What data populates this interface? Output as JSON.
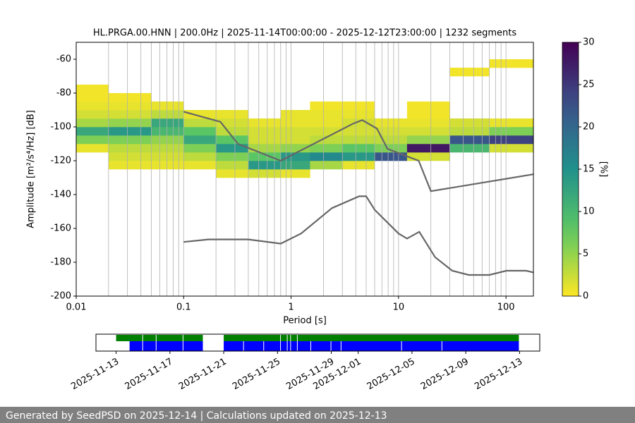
{
  "chart_data": [
    {
      "type": "heatmap",
      "title": "HL.PRGA.00.HNN | 200.0Hz | 2025-11-14T00:00:00 - 2025-12-12T23:00:00 | 1232 segments",
      "xlabel": "Period [s]",
      "ylabel": "Amplitude [m²/s⁴/Hz] [dB]",
      "xscale": "log",
      "xlim": [
        0.01,
        180
      ],
      "xticks": [
        0.01,
        0.1,
        1,
        10,
        100
      ],
      "xminor_grid": true,
      "ylim": [
        -200,
        -50
      ],
      "yticks": [
        -200,
        -180,
        -160,
        -140,
        -120,
        -100,
        -80,
        -60
      ],
      "grid": "x",
      "colormap": "viridis_r",
      "clim": [
        0,
        30
      ],
      "cticks": [
        0,
        5,
        10,
        15,
        20,
        25,
        30
      ],
      "clabel": "[%]",
      "x_edges": [
        0.01,
        0.02,
        0.05,
        0.1,
        0.2,
        0.4,
        0.8,
        1.5,
        3,
        6,
        12,
        30,
        70,
        180
      ],
      "y_edges": [
        -130,
        -125,
        -120,
        -115,
        -110,
        -105,
        -100,
        -95,
        -90,
        -85,
        -80,
        -75,
        -70,
        -65,
        -60
      ],
      "z": [
        [
          null,
          null,
          null,
          1,
          6,
          12,
          4,
          2,
          1,
          0.5,
          0.5,
          null,
          null,
          null
        ],
        [
          null,
          1,
          2,
          3,
          6,
          14,
          5,
          2,
          1,
          0.5,
          null,
          null,
          null,
          null
        ],
        [
          null,
          1,
          2,
          3,
          5,
          10,
          12,
          3,
          1,
          null,
          null,
          null,
          null,
          null
        ],
        [
          null,
          1,
          3,
          6,
          12,
          8,
          3,
          1,
          null,
          null,
          null,
          null,
          null,
          null
        ],
        [
          1,
          3,
          6,
          14,
          8,
          3,
          2,
          1,
          null,
          null,
          null,
          null,
          null,
          null
        ],
        [
          2,
          14,
          8,
          4,
          2,
          2,
          1,
          null,
          null,
          null,
          null,
          null,
          null,
          null
        ],
        [
          1,
          12,
          14,
          5,
          2,
          2,
          1,
          1,
          null,
          null,
          null,
          null,
          null,
          null
        ],
        [
          null,
          4,
          16,
          6,
          3,
          2,
          1,
          1,
          0.5,
          null,
          null,
          null,
          null,
          null
        ],
        [
          null,
          1,
          14,
          8,
          3,
          2,
          2,
          1,
          0.5,
          null,
          null,
          null,
          null,
          null
        ],
        [
          null,
          null,
          22,
          6,
          3,
          2,
          1,
          null,
          null,
          null,
          null,
          null,
          null,
          null
        ],
        [
          null,
          null,
          2,
          28,
          5,
          2,
          1,
          0.5,
          0.5,
          null,
          null,
          null,
          null,
          null
        ],
        [
          null,
          null,
          null,
          10,
          22,
          3,
          2,
          null,
          null,
          null,
          null,
          null,
          0.5,
          null
        ],
        [
          null,
          null,
          null,
          2,
          24,
          6,
          1,
          null,
          null,
          null,
          null,
          null,
          null,
          0.5
        ]
      ],
      "series": [
        {
          "color": "#666666",
          "x": [
            0.1,
            0.22,
            0.32,
            0.8,
            3.8,
            4.6,
            6.3,
            7.9,
            15.4,
            20,
            180
          ],
          "values": [
            -91,
            -97,
            -110,
            -120,
            -98,
            -96,
            -101,
            -113,
            -120,
            -138,
            -128
          ]
        },
        {
          "color": "#666666",
          "x": [
            0.1,
            0.17,
            0.4,
            0.8,
            1.24,
            2.4,
            4.3,
            5,
            6,
            10,
            12,
            15.6,
            21.9,
            31.6,
            45,
            70,
            101,
            154,
            180
          ],
          "values": [
            -168,
            -166.5,
            -166.5,
            -169,
            -163,
            -148,
            -141,
            -141,
            -149,
            -163,
            -166,
            -162,
            -177,
            -185,
            -187.5,
            -187.5,
            -185,
            -185,
            -186
          ]
        }
      ]
    },
    {
      "type": "timeline",
      "xlim": [
        "2025-11-11T12:00",
        "2025-12-14T12:00"
      ],
      "xticks": [
        "2025-11-13",
        "2025-11-17",
        "2025-11-21",
        "2025-11-25",
        "2025-11-29",
        "2025-12-01",
        "2025-12-05",
        "2025-12-09",
        "2025-12-13"
      ],
      "series": [
        {
          "color": "#008000",
          "intervals": [
            [
              "2025-11-13",
              "2025-11-15"
            ],
            [
              "2025-11-15",
              "2025-11-16"
            ],
            [
              "2025-11-16",
              "2025-11-18"
            ],
            [
              "2025-11-18",
              "2025-11-19T12:00"
            ],
            [
              "2025-11-21",
              "2025-11-25T06:00"
            ],
            [
              "2025-11-25T06:00",
              "2025-11-25T18:00"
            ],
            [
              "2025-11-25T18:00",
              "2025-11-26"
            ],
            [
              "2025-11-26",
              "2025-11-26T12:00"
            ],
            [
              "2025-11-26T12:00",
              "2025-12-13"
            ]
          ]
        },
        {
          "color": "#0000ff",
          "intervals": [
            [
              "2025-11-14",
              "2025-11-15"
            ],
            [
              "2025-11-15",
              "2025-11-16"
            ],
            [
              "2025-11-16",
              "2025-11-18"
            ],
            [
              "2025-11-18",
              "2025-11-19T12:00"
            ],
            [
              "2025-11-21",
              "2025-11-22T12:00"
            ],
            [
              "2025-11-22T12:00",
              "2025-11-24"
            ],
            [
              "2025-11-24",
              "2025-11-25T06:00"
            ],
            [
              "2025-11-25T06:00",
              "2025-11-25T18:00"
            ],
            [
              "2025-11-25T18:00",
              "2025-11-26"
            ],
            [
              "2025-11-26",
              "2025-11-26T12:00"
            ],
            [
              "2025-11-26T12:00",
              "2025-11-27T12:00"
            ],
            [
              "2025-11-27T12:00",
              "2025-11-29"
            ],
            [
              "2025-11-29",
              "2025-11-29T18:00"
            ],
            [
              "2025-11-29T18:00",
              "2025-12-04T06:00"
            ],
            [
              "2025-12-04T06:00",
              "2025-12-07T06:00"
            ],
            [
              "2025-12-07T06:00",
              "2025-12-13"
            ]
          ]
        }
      ]
    }
  ],
  "footer": "Generated by SeedPSD on 2025-12-14 | Calculations updated on 2025-12-13"
}
